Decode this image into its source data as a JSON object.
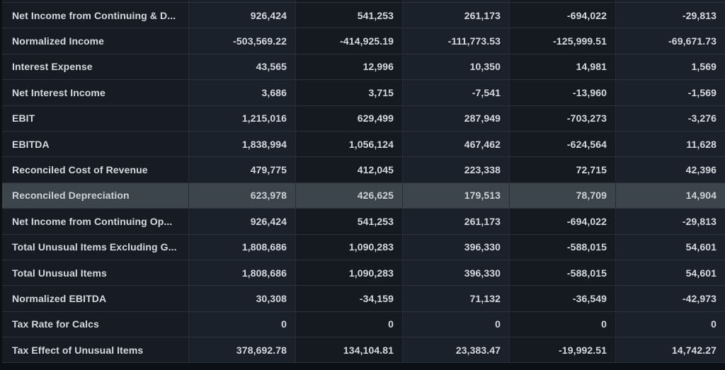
{
  "colors": {
    "page_background": "#0c0f13",
    "label_column_background": "#171c24",
    "odd_column_background": "#1b212b",
    "even_column_background": "#151a21",
    "highlight_row_background": "#3c444c",
    "grid_line": "#2b323a",
    "text": "#d3d9df"
  },
  "table": {
    "column_count": 5,
    "rows": [
      {
        "label": "Net Income from Continuing & D...",
        "highlighted": false,
        "values": [
          "926,424",
          "541,253",
          "261,173",
          "-694,022",
          "-29,813"
        ]
      },
      {
        "label": "Normalized Income",
        "highlighted": false,
        "values": [
          "-503,569.22",
          "-414,925.19",
          "-111,773.53",
          "-125,999.51",
          "-69,671.73"
        ]
      },
      {
        "label": "Interest Expense",
        "highlighted": false,
        "values": [
          "43,565",
          "12,996",
          "10,350",
          "14,981",
          "1,569"
        ]
      },
      {
        "label": "Net Interest Income",
        "highlighted": false,
        "values": [
          "3,686",
          "3,715",
          "-7,541",
          "-13,960",
          "-1,569"
        ]
      },
      {
        "label": "EBIT",
        "highlighted": false,
        "values": [
          "1,215,016",
          "629,499",
          "287,949",
          "-703,273",
          "-3,276"
        ]
      },
      {
        "label": "EBITDA",
        "highlighted": false,
        "values": [
          "1,838,994",
          "1,056,124",
          "467,462",
          "-624,564",
          "11,628"
        ]
      },
      {
        "label": "Reconciled Cost of Revenue",
        "highlighted": false,
        "values": [
          "479,775",
          "412,045",
          "223,338",
          "72,715",
          "42,396"
        ]
      },
      {
        "label": "Reconciled Depreciation",
        "highlighted": true,
        "values": [
          "623,978",
          "426,625",
          "179,513",
          "78,709",
          "14,904"
        ]
      },
      {
        "label": "Net Income from Continuing Op...",
        "highlighted": false,
        "values": [
          "926,424",
          "541,253",
          "261,173",
          "-694,022",
          "-29,813"
        ]
      },
      {
        "label": "Total Unusual Items Excluding G...",
        "highlighted": false,
        "values": [
          "1,808,686",
          "1,090,283",
          "396,330",
          "-588,015",
          "54,601"
        ]
      },
      {
        "label": "Total Unusual Items",
        "highlighted": false,
        "values": [
          "1,808,686",
          "1,090,283",
          "396,330",
          "-588,015",
          "54,601"
        ]
      },
      {
        "label": "Normalized EBITDA",
        "highlighted": false,
        "values": [
          "30,308",
          "-34,159",
          "71,132",
          "-36,549",
          "-42,973"
        ]
      },
      {
        "label": "Tax Rate for Calcs",
        "highlighted": false,
        "values": [
          "0",
          "0",
          "0",
          "0",
          "0"
        ]
      },
      {
        "label": "Tax Effect of Unusual Items",
        "highlighted": false,
        "values": [
          "378,692.78",
          "134,104.81",
          "23,383.47",
          "-19,992.51",
          "14,742.27"
        ]
      }
    ]
  }
}
